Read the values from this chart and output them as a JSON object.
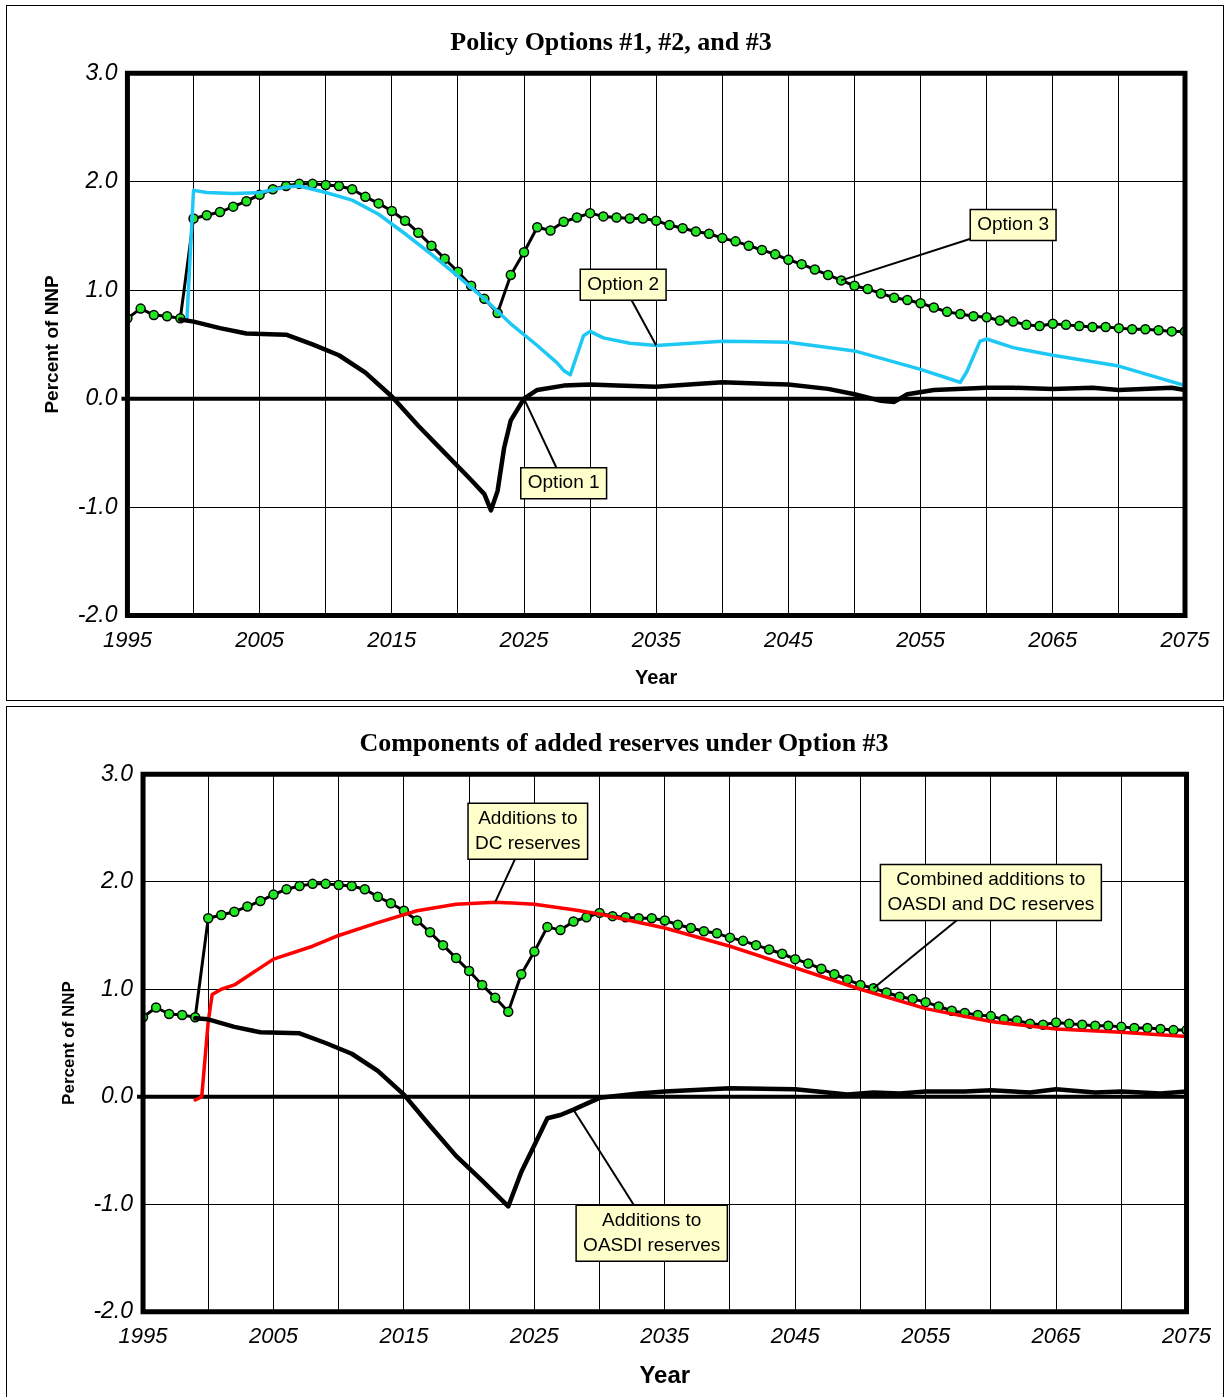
{
  "chart_data": [
    {
      "type": "line",
      "title": "Policy Options #1, #2, and #3",
      "xlabel": "Year",
      "ylabel": "Percent of NNP",
      "xlim": [
        1995,
        2075
      ],
      "xticks": [
        1995,
        {
          "value": 2000,
          "label": null
        },
        2005,
        {
          "value": 2010,
          "label": null
        },
        2015,
        {
          "value": 2020,
          "label": null
        },
        2025,
        {
          "value": 2030,
          "label": null
        },
        2035,
        {
          "value": 2040,
          "label": null
        },
        2045,
        {
          "value": 2050,
          "label": null
        },
        2055,
        {
          "value": 2060,
          "label": null
        },
        2065,
        {
          "value": 2070,
          "label": null
        },
        2075
      ],
      "ylim": [
        -2,
        3
      ],
      "yticks": [
        {
          "value": -2,
          "label": "-2.0"
        },
        {
          "value": -1,
          "label": "-1.0"
        },
        {
          "value": 0,
          "label": "0.0"
        },
        {
          "value": 1,
          "label": "1.0"
        },
        {
          "value": 2,
          "label": "2.0"
        },
        {
          "value": 3,
          "label": "3.0"
        }
      ],
      "grid": true,
      "legend": false,
      "ref_lines": [
        {
          "axis": "y",
          "value": 0,
          "color": "#000000"
        }
      ],
      "series": [
        {
          "name": "Option 1",
          "type": "line",
          "color": "#000000",
          "marker": "none",
          "x": [
            1999,
            2000,
            2002,
            2004,
            2007,
            2009,
            2011,
            2013,
            2015,
            2017,
            2019,
            2021,
            2022,
            2022.5,
            2023,
            2023.5,
            2024,
            2025,
            2026,
            2028,
            2030,
            2032,
            2035,
            2040,
            2045,
            2048,
            2050,
            2052,
            2053,
            2054,
            2056,
            2060,
            2062,
            2065,
            2068,
            2070,
            2074,
            2075
          ],
          "values": [
            0.73,
            0.71,
            0.65,
            0.6,
            0.59,
            0.5,
            0.4,
            0.24,
            0.02,
            -0.25,
            -0.5,
            -0.75,
            -0.88,
            -1.03,
            -0.85,
            -0.45,
            -0.2,
            0.0,
            0.08,
            0.12,
            0.13,
            0.12,
            0.11,
            0.15,
            0.13,
            0.09,
            0.04,
            -0.02,
            -0.03,
            0.04,
            0.08,
            0.1,
            0.1,
            0.09,
            0.1,
            0.08,
            0.1,
            0.08
          ]
        },
        {
          "name": "Option 2",
          "type": "line",
          "color": "#1ec8f5",
          "marker": "none",
          "x": [
            1999.5,
            2000,
            2001,
            2003,
            2005,
            2007,
            2008,
            2010,
            2012,
            2014,
            2016,
            2018,
            2020,
            2022,
            2024,
            2026,
            2027.5,
            2028,
            2028.5,
            2029.5,
            2030,
            2031,
            2033,
            2035,
            2040,
            2045,
            2050,
            2055,
            2057,
            2058,
            2058.5,
            2059.5,
            2060,
            2062,
            2065,
            2070,
            2075
          ],
          "values": [
            0.73,
            1.92,
            1.9,
            1.89,
            1.9,
            1.95,
            1.96,
            1.9,
            1.83,
            1.7,
            1.52,
            1.33,
            1.13,
            0.92,
            0.69,
            0.49,
            0.33,
            0.26,
            0.22,
            0.58,
            0.62,
            0.56,
            0.51,
            0.49,
            0.53,
            0.52,
            0.44,
            0.27,
            0.19,
            0.15,
            0.25,
            0.53,
            0.55,
            0.47,
            0.4,
            0.3,
            0.12
          ]
        },
        {
          "name": "Option 3",
          "type": "line",
          "color": "#22e622",
          "marker": "circle",
          "x": [
            1995,
            1996,
            1997,
            1998,
            1999,
            2000,
            2001,
            2002,
            2003,
            2004,
            2005,
            2006,
            2007,
            2008,
            2009,
            2010,
            2011,
            2012,
            2013,
            2014,
            2015,
            2016,
            2017,
            2018,
            2019,
            2020,
            2021,
            2022,
            2023,
            2024,
            2025,
            2026,
            2027,
            2028,
            2029,
            2030,
            2031,
            2032,
            2033,
            2034,
            2035,
            2036,
            2037,
            2038,
            2039,
            2040,
            2041,
            2042,
            2043,
            2044,
            2045,
            2046,
            2047,
            2048,
            2049,
            2050,
            2051,
            2052,
            2053,
            2054,
            2055,
            2056,
            2057,
            2058,
            2059,
            2060,
            2061,
            2062,
            2063,
            2064,
            2065,
            2066,
            2067,
            2068,
            2069,
            2070,
            2071,
            2072,
            2073,
            2074,
            2075
          ],
          "values": [
            0.74,
            0.83,
            0.77,
            0.76,
            0.74,
            1.66,
            1.69,
            1.72,
            1.77,
            1.82,
            1.88,
            1.93,
            1.96,
            1.98,
            1.98,
            1.97,
            1.96,
            1.93,
            1.86,
            1.8,
            1.73,
            1.64,
            1.53,
            1.41,
            1.29,
            1.17,
            1.04,
            0.92,
            0.79,
            1.14,
            1.35,
            1.58,
            1.55,
            1.63,
            1.67,
            1.71,
            1.68,
            1.67,
            1.66,
            1.66,
            1.64,
            1.6,
            1.57,
            1.54,
            1.52,
            1.48,
            1.45,
            1.41,
            1.37,
            1.33,
            1.28,
            1.24,
            1.19,
            1.14,
            1.09,
            1.04,
            1.01,
            0.97,
            0.93,
            0.91,
            0.88,
            0.84,
            0.8,
            0.78,
            0.76,
            0.75,
            0.72,
            0.71,
            0.68,
            0.67,
            0.69,
            0.68,
            0.67,
            0.66,
            0.66,
            0.65,
            0.64,
            0.64,
            0.63,
            0.62,
            0.62
          ]
        }
      ]
    },
    {
      "type": "line",
      "title": "Components of added reserves under Option #3",
      "xlabel": "Year",
      "ylabel": "Percent of NNP",
      "xlim": [
        1995,
        2075
      ],
      "xticks": [
        1995,
        {
          "value": 2000,
          "label": null
        },
        2005,
        {
          "value": 2010,
          "label": null
        },
        2015,
        {
          "value": 2020,
          "label": null
        },
        2025,
        {
          "value": 2030,
          "label": null
        },
        2035,
        {
          "value": 2040,
          "label": null
        },
        2045,
        {
          "value": 2050,
          "label": null
        },
        2055,
        {
          "value": 2060,
          "label": null
        },
        2065,
        {
          "value": 2070,
          "label": null
        },
        2075
      ],
      "ylim": [
        -2,
        3
      ],
      "yticks": [
        {
          "value": -2,
          "label": "-2.0"
        },
        {
          "value": -1,
          "label": "-1.0"
        },
        {
          "value": 0,
          "label": "0.0"
        },
        {
          "value": 1,
          "label": "1.0"
        },
        {
          "value": 2,
          "label": "2.0"
        },
        {
          "value": 3,
          "label": "3.0"
        }
      ],
      "grid": true,
      "legend": false,
      "ref_lines": [
        {
          "axis": "y",
          "value": 0,
          "color": "#000000"
        }
      ],
      "series": [
        {
          "name": "Additions to OASDI reserves",
          "type": "line",
          "color": "#000000",
          "marker": "none",
          "x": [
            1999,
            2000,
            2002,
            2004,
            2007,
            2009,
            2011,
            2013,
            2015,
            2017,
            2019,
            2021,
            2023,
            2024,
            2025,
            2026,
            2027,
            2028,
            2030,
            2033,
            2035,
            2040,
            2045,
            2049,
            2051,
            2053,
            2055,
            2058,
            2060,
            2063,
            2065,
            2068,
            2070,
            2073,
            2075
          ],
          "values": [
            0.73,
            0.72,
            0.65,
            0.6,
            0.59,
            0.5,
            0.4,
            0.24,
            0.02,
            -0.27,
            -0.55,
            -0.78,
            -1.02,
            -0.7,
            -0.45,
            -0.2,
            -0.17,
            -0.12,
            -0.01,
            0.03,
            0.05,
            0.08,
            0.07,
            0.02,
            0.04,
            0.03,
            0.05,
            0.05,
            0.06,
            0.04,
            0.07,
            0.04,
            0.05,
            0.03,
            0.05
          ]
        },
        {
          "name": "Additions to DC reserves",
          "type": "line",
          "color": "#ff0000",
          "marker": "none",
          "x": [
            1999,
            1999.5,
            2000,
            2000.3,
            2001,
            2002,
            2005,
            2008,
            2010,
            2013,
            2016,
            2019,
            2022,
            2025,
            2028,
            2030,
            2035,
            2040,
            2045,
            2050,
            2055,
            2060,
            2065,
            2070,
            2075
          ],
          "values": [
            -0.03,
            0.0,
            0.7,
            0.95,
            1.0,
            1.04,
            1.28,
            1.4,
            1.5,
            1.62,
            1.73,
            1.79,
            1.81,
            1.79,
            1.74,
            1.7,
            1.57,
            1.4,
            1.2,
            1.0,
            0.82,
            0.7,
            0.63,
            0.6,
            0.56
          ]
        },
        {
          "name": "Combined additions to OASDI and DC reserves",
          "type": "line",
          "color": "#22e622",
          "marker": "circle",
          "x": [
            1995,
            1996,
            1997,
            1998,
            1999,
            2000,
            2001,
            2002,
            2003,
            2004,
            2005,
            2006,
            2007,
            2008,
            2009,
            2010,
            2011,
            2012,
            2013,
            2014,
            2015,
            2016,
            2017,
            2018,
            2019,
            2020,
            2021,
            2022,
            2023,
            2024,
            2025,
            2026,
            2027,
            2028,
            2029,
            2030,
            2031,
            2032,
            2033,
            2034,
            2035,
            2036,
            2037,
            2038,
            2039,
            2040,
            2041,
            2042,
            2043,
            2044,
            2045,
            2046,
            2047,
            2048,
            2049,
            2050,
            2051,
            2052,
            2053,
            2054,
            2055,
            2056,
            2057,
            2058,
            2059,
            2060,
            2061,
            2062,
            2063,
            2064,
            2065,
            2066,
            2067,
            2068,
            2069,
            2070,
            2071,
            2072,
            2073,
            2074,
            2075
          ],
          "values": [
            0.74,
            0.83,
            0.77,
            0.76,
            0.74,
            1.66,
            1.69,
            1.72,
            1.77,
            1.82,
            1.88,
            1.93,
            1.96,
            1.98,
            1.98,
            1.97,
            1.96,
            1.93,
            1.86,
            1.8,
            1.73,
            1.64,
            1.53,
            1.41,
            1.29,
            1.17,
            1.04,
            0.92,
            0.79,
            1.14,
            1.35,
            1.58,
            1.55,
            1.63,
            1.67,
            1.71,
            1.68,
            1.67,
            1.66,
            1.66,
            1.64,
            1.6,
            1.57,
            1.54,
            1.52,
            1.48,
            1.45,
            1.41,
            1.37,
            1.33,
            1.28,
            1.24,
            1.19,
            1.14,
            1.09,
            1.04,
            1.01,
            0.97,
            0.93,
            0.91,
            0.88,
            0.84,
            0.8,
            0.78,
            0.76,
            0.75,
            0.72,
            0.71,
            0.68,
            0.67,
            0.69,
            0.68,
            0.67,
            0.66,
            0.66,
            0.65,
            0.64,
            0.64,
            0.63,
            0.62,
            0.62
          ]
        }
      ]
    }
  ]
}
